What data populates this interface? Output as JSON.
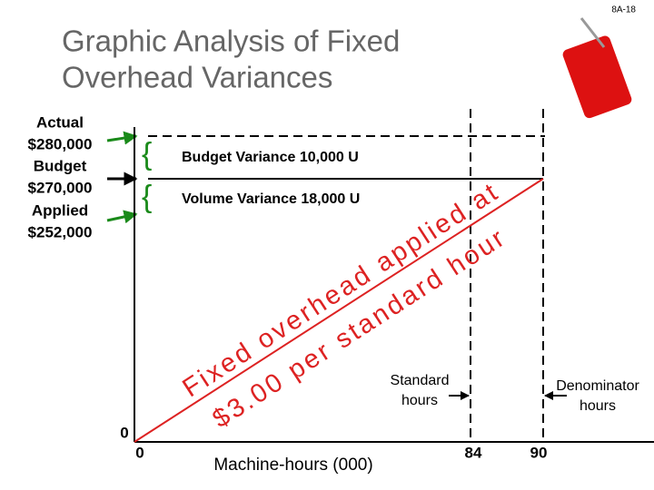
{
  "page_number": "8A-18",
  "title": [
    "Graphic Analysis of Fixed",
    "Overhead Variances"
  ],
  "legend": [
    {
      "label": "Actual",
      "amount": "$280,000"
    },
    {
      "label": "Budget",
      "amount": "$270,000"
    },
    {
      "label": "Applied",
      "amount": "$252,000"
    }
  ],
  "variances": [
    "Budget Variance 10,000 U",
    "Volume Variance 18,000 U"
  ],
  "rate_label": [
    "Fixed overhead applied at",
    "$3.00 per standard hour"
  ],
  "markers": [
    {
      "label": [
        "Standard",
        "hours"
      ],
      "value": "84"
    },
    {
      "label": [
        "Denominator",
        "hours"
      ],
      "value": "90"
    }
  ],
  "axis": {
    "y_origin": "0",
    "x_origin": "0",
    "x_label": "Machine-hours (000)"
  }
}
